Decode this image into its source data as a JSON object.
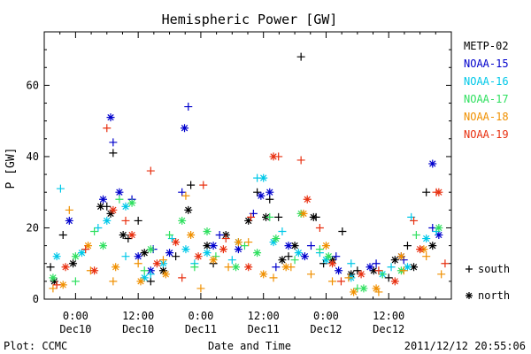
{
  "chart_data": {
    "type": "scatter",
    "title": "Hemispheric Power [GW]",
    "xlabel": "Date and Time",
    "ylabel": "P [GW]",
    "xlim": [
      -0.25,
      3.0
    ],
    "ylim": [
      0,
      75
    ],
    "yticks": [
      0,
      20,
      40,
      60
    ],
    "xticks": [
      {
        "x": 0.0,
        "time": "0:00",
        "date": "Dec10"
      },
      {
        "x": 0.5,
        "time": "12:00",
        "date": "Dec10"
      },
      {
        "x": 1.0,
        "time": "0:00",
        "date": "Dec11"
      },
      {
        "x": 1.5,
        "time": "12:00",
        "date": "Dec11"
      },
      {
        "x": 2.0,
        "time": "0:00",
        "date": "Dec12"
      },
      {
        "x": 2.5,
        "time": "12:00",
        "date": "Dec12"
      }
    ],
    "grid": false,
    "legend_position": "right",
    "marker_legend": [
      {
        "marker": "plus",
        "label": "south"
      },
      {
        "marker": "asterisk",
        "label": "north"
      }
    ],
    "series": [
      {
        "name": "METP-02",
        "color": "#000000",
        "plus": [
          [
            -0.2,
            9
          ],
          [
            -0.1,
            18
          ],
          [
            0.25,
            26
          ],
          [
            0.3,
            41
          ],
          [
            0.42,
            17
          ],
          [
            0.5,
            22
          ],
          [
            0.6,
            5
          ],
          [
            0.8,
            12
          ],
          [
            0.92,
            32
          ],
          [
            1.1,
            10
          ],
          [
            1.45,
            30
          ],
          [
            1.55,
            28
          ],
          [
            1.62,
            23
          ],
          [
            1.7,
            12
          ],
          [
            1.8,
            68
          ],
          [
            1.92,
            23
          ],
          [
            1.98,
            10
          ],
          [
            2.13,
            19
          ],
          [
            2.25,
            8
          ],
          [
            2.5,
            6
          ],
          [
            2.65,
            15
          ],
          [
            2.8,
            30
          ]
        ],
        "asterisk": [
          [
            -0.17,
            5
          ],
          [
            -0.02,
            10
          ],
          [
            0.2,
            26
          ],
          [
            0.28,
            24
          ],
          [
            0.38,
            18
          ],
          [
            0.55,
            13
          ],
          [
            0.7,
            8
          ],
          [
            0.9,
            25
          ],
          [
            1.05,
            15
          ],
          [
            1.2,
            18
          ],
          [
            1.38,
            22
          ],
          [
            1.52,
            23
          ],
          [
            1.65,
            11
          ],
          [
            1.75,
            15
          ],
          [
            1.9,
            23
          ],
          [
            2.05,
            11
          ],
          [
            2.2,
            7
          ],
          [
            2.38,
            8
          ],
          [
            2.55,
            11
          ],
          [
            2.7,
            9
          ],
          [
            2.85,
            15
          ]
        ]
      },
      {
        "name": "NOAA-15",
        "color": "#0000cc",
        "plus": [
          [
            0.3,
            44
          ],
          [
            0.45,
            28
          ],
          [
            0.62,
            14
          ],
          [
            0.85,
            30
          ],
          [
            0.9,
            54
          ],
          [
            1.15,
            18
          ],
          [
            1.42,
            24
          ],
          [
            1.6,
            9
          ],
          [
            1.88,
            15
          ],
          [
            2.08,
            12
          ],
          [
            2.4,
            10
          ],
          [
            2.62,
            11
          ],
          [
            2.85,
            20
          ]
        ],
        "asterisk": [
          [
            -0.05,
            22
          ],
          [
            0.22,
            28
          ],
          [
            0.28,
            51
          ],
          [
            0.35,
            30
          ],
          [
            0.5,
            12
          ],
          [
            0.6,
            8
          ],
          [
            0.75,
            13
          ],
          [
            0.87,
            48
          ],
          [
            1.1,
            15
          ],
          [
            1.3,
            14
          ],
          [
            1.48,
            29
          ],
          [
            1.55,
            30
          ],
          [
            1.7,
            15
          ],
          [
            1.83,
            12
          ],
          [
            2.1,
            8
          ],
          [
            2.35,
            9
          ],
          [
            2.6,
            12
          ],
          [
            2.85,
            38
          ],
          [
            2.9,
            18
          ]
        ]
      },
      {
        "name": "NOAA-16",
        "color": "#00c8e8",
        "plus": [
          [
            -0.12,
            31
          ],
          [
            0.18,
            20
          ],
          [
            0.4,
            12
          ],
          [
            0.6,
            7
          ],
          [
            0.77,
            17
          ],
          [
            0.95,
            10
          ],
          [
            1.25,
            11
          ],
          [
            1.45,
            34
          ],
          [
            1.65,
            19
          ],
          [
            1.95,
            13
          ],
          [
            2.2,
            10
          ],
          [
            2.52,
            9
          ],
          [
            2.68,
            23
          ],
          [
            2.88,
            19
          ]
        ],
        "asterisk": [
          [
            -0.15,
            12
          ],
          [
            0.05,
            13
          ],
          [
            0.25,
            22
          ],
          [
            0.4,
            26
          ],
          [
            0.55,
            6
          ],
          [
            0.7,
            10
          ],
          [
            0.88,
            14
          ],
          [
            1.05,
            13
          ],
          [
            1.3,
            16
          ],
          [
            1.5,
            34
          ],
          [
            1.58,
            16
          ],
          [
            1.78,
            13
          ],
          [
            2.0,
            11
          ],
          [
            2.2,
            6
          ],
          [
            2.45,
            7
          ],
          [
            2.65,
            9
          ],
          [
            2.8,
            17
          ]
        ]
      },
      {
        "name": "NOAA-17",
        "color": "#30e060",
        "plus": [
          [
            0.0,
            5
          ],
          [
            0.15,
            19
          ],
          [
            0.35,
            28
          ],
          [
            0.55,
            8
          ],
          [
            0.75,
            18
          ],
          [
            0.95,
            9
          ],
          [
            1.12,
            12
          ],
          [
            1.35,
            15
          ],
          [
            1.55,
            23
          ],
          [
            1.75,
            11
          ],
          [
            1.95,
            14
          ],
          [
            2.25,
            3
          ],
          [
            2.45,
            7
          ],
          [
            2.72,
            18
          ]
        ],
        "asterisk": [
          [
            -0.18,
            6
          ],
          [
            0.0,
            12
          ],
          [
            0.22,
            15
          ],
          [
            0.45,
            27
          ],
          [
            0.6,
            14
          ],
          [
            0.85,
            22
          ],
          [
            1.05,
            19
          ],
          [
            1.28,
            9
          ],
          [
            1.45,
            13
          ],
          [
            1.6,
            17
          ],
          [
            1.8,
            24
          ],
          [
            2.02,
            12
          ],
          [
            2.3,
            3
          ],
          [
            2.6,
            8
          ],
          [
            2.9,
            20
          ]
        ]
      },
      {
        "name": "NOAA-18",
        "color": "#f09000",
        "plus": [
          [
            -0.18,
            3
          ],
          [
            -0.05,
            25
          ],
          [
            0.12,
            8
          ],
          [
            0.3,
            5
          ],
          [
            0.5,
            10
          ],
          [
            0.7,
            11
          ],
          [
            0.88,
            29
          ],
          [
            1.0,
            3
          ],
          [
            1.22,
            9
          ],
          [
            1.38,
            16
          ],
          [
            1.58,
            6
          ],
          [
            1.72,
            9
          ],
          [
            1.88,
            7
          ],
          [
            2.05,
            5
          ],
          [
            2.18,
            6
          ],
          [
            2.42,
            2
          ],
          [
            2.62,
            8
          ],
          [
            2.8,
            12
          ],
          [
            2.92,
            7
          ]
        ],
        "asterisk": [
          [
            -0.1,
            4
          ],
          [
            0.1,
            15
          ],
          [
            0.32,
            9
          ],
          [
            0.52,
            5
          ],
          [
            0.72,
            7
          ],
          [
            0.92,
            18
          ],
          [
            1.1,
            11
          ],
          [
            1.3,
            16
          ],
          [
            1.5,
            7
          ],
          [
            1.68,
            9
          ],
          [
            1.82,
            24
          ],
          [
            2.0,
            15
          ],
          [
            2.22,
            2
          ],
          [
            2.4,
            3
          ],
          [
            2.6,
            12
          ],
          [
            2.78,
            14
          ]
        ]
      },
      {
        "name": "NOAA-19",
        "color": "#e83010",
        "plus": [
          [
            -0.15,
            4
          ],
          [
            0.08,
            14
          ],
          [
            0.25,
            48
          ],
          [
            0.4,
            22
          ],
          [
            0.6,
            36
          ],
          [
            0.85,
            6
          ],
          [
            1.02,
            32
          ],
          [
            1.2,
            17
          ],
          [
            1.4,
            23
          ],
          [
            1.62,
            40
          ],
          [
            1.8,
            39
          ],
          [
            1.95,
            20
          ],
          [
            2.12,
            5
          ],
          [
            2.42,
            8
          ],
          [
            2.7,
            22
          ],
          [
            2.88,
            30
          ],
          [
            2.95,
            10
          ]
        ],
        "asterisk": [
          [
            -0.08,
            9
          ],
          [
            0.15,
            8
          ],
          [
            0.3,
            25
          ],
          [
            0.45,
            18
          ],
          [
            0.65,
            10
          ],
          [
            0.8,
            16
          ],
          [
            0.98,
            12
          ],
          [
            1.18,
            14
          ],
          [
            1.38,
            9
          ],
          [
            1.58,
            40
          ],
          [
            1.85,
            28
          ],
          [
            2.05,
            10
          ],
          [
            2.28,
            7
          ],
          [
            2.55,
            5
          ],
          [
            2.75,
            14
          ],
          [
            2.9,
            30
          ]
        ]
      }
    ]
  },
  "footer": {
    "plot_label": "Plot: CCMC",
    "timestamp": "2011/12/12 20:55:06"
  }
}
